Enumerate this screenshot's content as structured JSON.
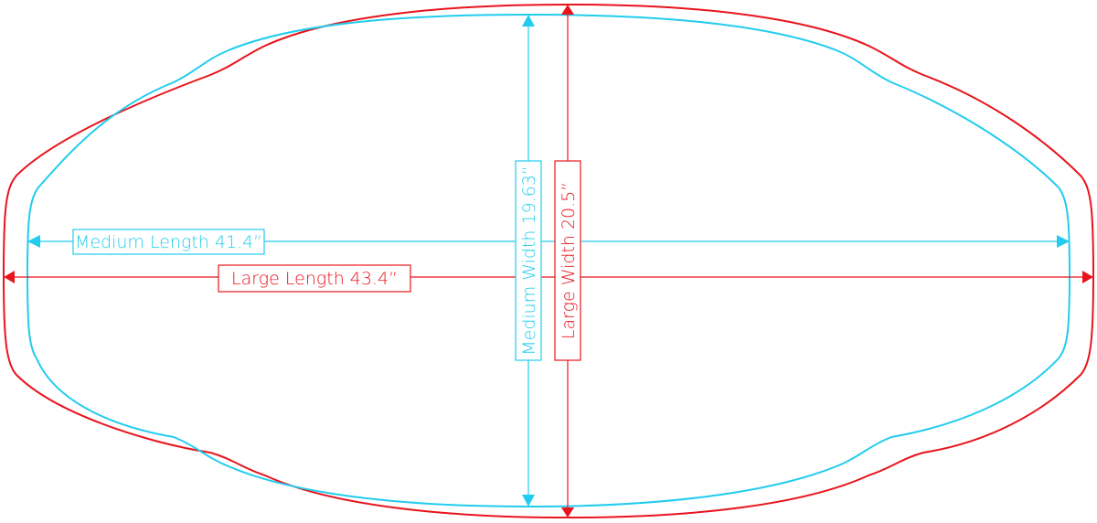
{
  "colors": {
    "medium": "#22ccee",
    "large": "#e8141c"
  },
  "labels": {
    "medium_length": "Medium Length 41.4”",
    "large_length": "Large Length 43.4”",
    "medium_width": "Medium Width 19.63”",
    "large_width": "Large Width 20.5”"
  }
}
